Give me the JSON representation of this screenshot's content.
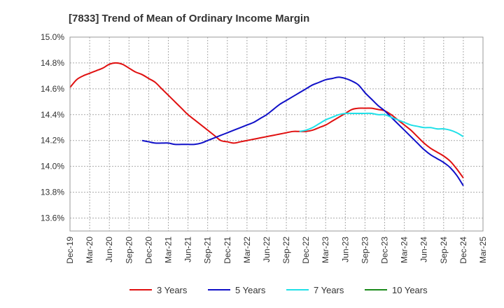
{
  "title": "[7833]  Trend of Mean of Ordinary Income Margin",
  "chart_data": {
    "type": "line",
    "title": "[7833]  Trend of Mean of Ordinary Income Margin",
    "xlabel": "",
    "ylabel": "",
    "ylim": [
      13.5,
      15.0
    ],
    "y_ticks": [
      "13.6%",
      "13.8%",
      "14.0%",
      "14.2%",
      "14.4%",
      "14.6%",
      "14.8%",
      "15.0%"
    ],
    "y_tick_values": [
      13.6,
      13.8,
      14.0,
      14.2,
      14.4,
      14.6,
      14.8,
      15.0
    ],
    "x_ticks": [
      "Dec-19",
      "Mar-20",
      "Jun-20",
      "Sep-20",
      "Dec-20",
      "Mar-21",
      "Jun-21",
      "Sep-21",
      "Dec-21",
      "Mar-22",
      "Jun-22",
      "Sep-22",
      "Dec-22",
      "Mar-23",
      "Jun-23",
      "Sep-23",
      "Dec-23",
      "Mar-24",
      "Jun-24",
      "Sep-24",
      "Dec-24",
      "Mar-25"
    ],
    "grid": true,
    "legend_position": "bottom",
    "series": [
      {
        "name": "3 Years",
        "color": "#e01010",
        "points": [
          [
            "Dec-19",
            14.61
          ],
          [
            "Jan-20",
            14.67
          ],
          [
            "Feb-20",
            14.7
          ],
          [
            "Mar-20",
            14.72
          ],
          [
            "Apr-20",
            14.74
          ],
          [
            "May-20",
            14.76
          ],
          [
            "Jun-20",
            14.79
          ],
          [
            "Jul-20",
            14.8
          ],
          [
            "Aug-20",
            14.79
          ],
          [
            "Sep-20",
            14.76
          ],
          [
            "Oct-20",
            14.73
          ],
          [
            "Nov-20",
            14.71
          ],
          [
            "Dec-20",
            14.68
          ],
          [
            "Jan-21",
            14.65
          ],
          [
            "Feb-21",
            14.6
          ],
          [
            "Mar-21",
            14.55
          ],
          [
            "Apr-21",
            14.5
          ],
          [
            "May-21",
            14.45
          ],
          [
            "Jun-21",
            14.4
          ],
          [
            "Jul-21",
            14.36
          ],
          [
            "Aug-21",
            14.32
          ],
          [
            "Sep-21",
            14.28
          ],
          [
            "Oct-21",
            14.24
          ],
          [
            "Nov-21",
            14.2
          ],
          [
            "Dec-21",
            14.19
          ],
          [
            "Jan-22",
            14.18
          ],
          [
            "Feb-22",
            14.19
          ],
          [
            "Mar-22",
            14.2
          ],
          [
            "Apr-22",
            14.21
          ],
          [
            "May-22",
            14.22
          ],
          [
            "Jun-22",
            14.23
          ],
          [
            "Jul-22",
            14.24
          ],
          [
            "Aug-22",
            14.25
          ],
          [
            "Sep-22",
            14.26
          ],
          [
            "Oct-22",
            14.27
          ],
          [
            "Nov-22",
            14.27
          ],
          [
            "Dec-22",
            14.27
          ],
          [
            "Jan-23",
            14.28
          ],
          [
            "Feb-23",
            14.3
          ],
          [
            "Mar-23",
            14.32
          ],
          [
            "Apr-23",
            14.35
          ],
          [
            "May-23",
            14.38
          ],
          [
            "Jun-23",
            14.41
          ],
          [
            "Jul-23",
            14.44
          ],
          [
            "Aug-23",
            14.45
          ],
          [
            "Sep-23",
            14.45
          ],
          [
            "Oct-23",
            14.45
          ],
          [
            "Nov-23",
            14.44
          ],
          [
            "Dec-23",
            14.43
          ],
          [
            "Jan-24",
            14.4
          ],
          [
            "Feb-24",
            14.36
          ],
          [
            "Mar-24",
            14.32
          ],
          [
            "Apr-24",
            14.28
          ],
          [
            "May-24",
            14.23
          ],
          [
            "Jun-24",
            14.18
          ],
          [
            "Jul-24",
            14.14
          ],
          [
            "Aug-24",
            14.11
          ],
          [
            "Sep-24",
            14.08
          ],
          [
            "Oct-24",
            14.04
          ],
          [
            "Nov-24",
            13.98
          ],
          [
            "Dec-24",
            13.91
          ]
        ]
      },
      {
        "name": "5 Years",
        "color": "#1010c8",
        "points": [
          [
            "Nov-20",
            14.2
          ],
          [
            "Dec-20",
            14.19
          ],
          [
            "Jan-21",
            14.18
          ],
          [
            "Feb-21",
            14.18
          ],
          [
            "Mar-21",
            14.18
          ],
          [
            "Apr-21",
            14.17
          ],
          [
            "May-21",
            14.17
          ],
          [
            "Jun-21",
            14.17
          ],
          [
            "Jul-21",
            14.17
          ],
          [
            "Aug-21",
            14.18
          ],
          [
            "Sep-21",
            14.2
          ],
          [
            "Oct-21",
            14.22
          ],
          [
            "Nov-21",
            14.24
          ],
          [
            "Dec-21",
            14.26
          ],
          [
            "Jan-22",
            14.28
          ],
          [
            "Feb-22",
            14.3
          ],
          [
            "Mar-22",
            14.32
          ],
          [
            "Apr-22",
            14.34
          ],
          [
            "May-22",
            14.37
          ],
          [
            "Jun-22",
            14.4
          ],
          [
            "Jul-22",
            14.44
          ],
          [
            "Aug-22",
            14.48
          ],
          [
            "Sep-22",
            14.51
          ],
          [
            "Oct-22",
            14.54
          ],
          [
            "Nov-22",
            14.57
          ],
          [
            "Dec-22",
            14.6
          ],
          [
            "Jan-23",
            14.63
          ],
          [
            "Feb-23",
            14.65
          ],
          [
            "Mar-23",
            14.67
          ],
          [
            "Apr-23",
            14.68
          ],
          [
            "May-23",
            14.69
          ],
          [
            "Jun-23",
            14.68
          ],
          [
            "Jul-23",
            14.66
          ],
          [
            "Aug-23",
            14.63
          ],
          [
            "Sep-23",
            14.57
          ],
          [
            "Oct-23",
            14.52
          ],
          [
            "Nov-23",
            14.47
          ],
          [
            "Dec-23",
            14.43
          ],
          [
            "Jan-24",
            14.38
          ],
          [
            "Feb-24",
            14.33
          ],
          [
            "Mar-24",
            14.28
          ],
          [
            "Apr-24",
            14.23
          ],
          [
            "May-24",
            14.18
          ],
          [
            "Jun-24",
            14.13
          ],
          [
            "Jul-24",
            14.09
          ],
          [
            "Aug-24",
            14.06
          ],
          [
            "Sep-24",
            14.03
          ],
          [
            "Oct-24",
            13.99
          ],
          [
            "Nov-24",
            13.93
          ],
          [
            "Dec-24",
            13.85
          ]
        ]
      },
      {
        "name": "7 Years",
        "color": "#20e0e8",
        "points": [
          [
            "Nov-22",
            14.27
          ],
          [
            "Dec-22",
            14.28
          ],
          [
            "Jan-23",
            14.3
          ],
          [
            "Feb-23",
            14.33
          ],
          [
            "Mar-23",
            14.36
          ],
          [
            "Apr-23",
            14.38
          ],
          [
            "May-23",
            14.4
          ],
          [
            "Jun-23",
            14.41
          ],
          [
            "Jul-23",
            14.41
          ],
          [
            "Aug-23",
            14.41
          ],
          [
            "Sep-23",
            14.41
          ],
          [
            "Oct-23",
            14.41
          ],
          [
            "Nov-23",
            14.4
          ],
          [
            "Dec-23",
            14.4
          ],
          [
            "Jan-24",
            14.38
          ],
          [
            "Feb-24",
            14.36
          ],
          [
            "Mar-24",
            14.34
          ],
          [
            "Apr-24",
            14.32
          ],
          [
            "May-24",
            14.31
          ],
          [
            "Jun-24",
            14.3
          ],
          [
            "Jul-24",
            14.3
          ],
          [
            "Aug-24",
            14.29
          ],
          [
            "Sep-24",
            14.29
          ],
          [
            "Oct-24",
            14.28
          ],
          [
            "Nov-24",
            14.26
          ],
          [
            "Dec-24",
            14.23
          ]
        ]
      },
      {
        "name": "10 Years",
        "color": "#1a8a1a",
        "points": []
      }
    ]
  }
}
